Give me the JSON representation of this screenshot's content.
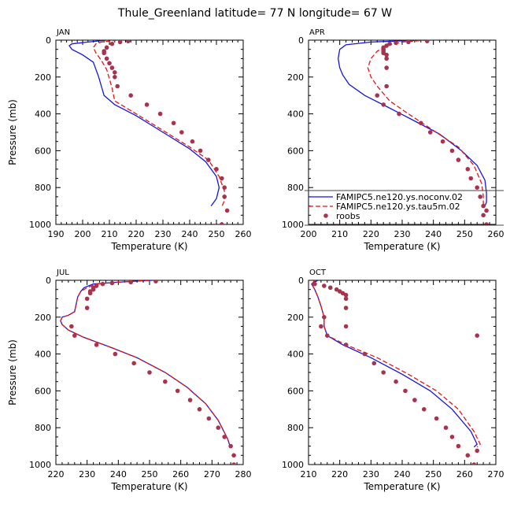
{
  "title": "Thule_Greenland  latitude= 77 N longitude= 67 W",
  "colors": {
    "noconv": "#1515e0",
    "tau5m": "#e01515",
    "roobs": "#a8334f",
    "axis": "#000000"
  },
  "legend": {
    "entries": [
      "FAMIPC5.ne120.ys.noconv.02",
      "FAMIPC5.ne120.ys.tau5m.02",
      "roobs"
    ]
  },
  "chart_data": [
    {
      "type": "line",
      "panel": "JAN",
      "label": "JAN",
      "xlabel": "Temperature (K)",
      "ylabel": "Pressure (mb)",
      "xlim": [
        190,
        260
      ],
      "ylim": [
        1000,
        0
      ],
      "xticks": [
        190,
        200,
        210,
        220,
        230,
        240,
        250,
        260
      ],
      "yticks": [
        0,
        200,
        400,
        600,
        800,
        1000
      ],
      "series": [
        {
          "name": "FAMIPC5.ne120.ys.noconv.02",
          "style": "solid",
          "x": [
            209,
            202,
            196,
            195,
            196,
            200,
            204,
            205,
            206,
            207,
            208,
            212,
            220,
            230,
            240,
            246,
            250,
            251,
            250,
            248
          ],
          "y": [
            0,
            10,
            20,
            30,
            50,
            80,
            120,
            160,
            200,
            250,
            300,
            350,
            410,
            500,
            590,
            660,
            740,
            800,
            860,
            900
          ]
        },
        {
          "name": "FAMIPC5.ne120.ys.tau5m.02",
          "style": "dashed",
          "x": [
            213,
            207,
            205,
            204,
            205,
            207,
            209,
            210,
            211,
            212,
            220,
            230,
            240,
            247,
            251,
            253,
            253,
            252
          ],
          "y": [
            0,
            10,
            20,
            40,
            70,
            110,
            160,
            210,
            260,
            330,
            400,
            490,
            580,
            650,
            740,
            820,
            870,
            905
          ]
        },
        {
          "name": "roobs",
          "style": "points",
          "x": [
            217,
            214,
            211,
            209,
            208,
            208,
            209,
            210,
            211,
            212,
            212,
            213,
            218,
            224,
            229,
            234,
            237,
            241,
            244,
            247,
            250,
            252,
            253,
            253,
            254,
            252
          ],
          "y": [
            5,
            10,
            20,
            40,
            60,
            70,
            100,
            125,
            150,
            175,
            200,
            250,
            300,
            350,
            400,
            450,
            500,
            550,
            600,
            650,
            700,
            750,
            800,
            850,
            925,
            1000
          ]
        }
      ]
    },
    {
      "type": "line",
      "panel": "APR",
      "label": "APR",
      "xlabel": "Temperature (K)",
      "ylabel": "",
      "xlim": [
        200,
        260
      ],
      "ylim": [
        1000,
        0
      ],
      "xticks": [
        200,
        210,
        220,
        230,
        240,
        250,
        260
      ],
      "yticks": [
        0,
        200,
        400,
        600,
        800,
        1000
      ],
      "series": [
        {
          "name": "FAMIPC5.ne120.ys.noconv.02",
          "style": "solid",
          "x": [
            236,
            220,
            212,
            210,
            209.5,
            210,
            211,
            213,
            218,
            225,
            233,
            242,
            249,
            254,
            256.5,
            257,
            257,
            256.5
          ],
          "y": [
            0,
            10,
            25,
            50,
            100,
            150,
            190,
            240,
            300,
            360,
            430,
            510,
            600,
            680,
            760,
            830,
            880,
            900
          ]
        },
        {
          "name": "FAMIPC5.ne120.ys.tau5m.02",
          "style": "dashed",
          "x": [
            238,
            230,
            225,
            222,
            220,
            219,
            220,
            222,
            224,
            226,
            232,
            240,
            248,
            253,
            255.5,
            256,
            256
          ],
          "y": [
            0,
            10,
            30,
            60,
            100,
            150,
            200,
            250,
            290,
            330,
            400,
            490,
            580,
            680,
            780,
            850,
            900
          ]
        },
        {
          "name": "roobs",
          "style": "points",
          "x": [
            238,
            232,
            228,
            226,
            225,
            224,
            224,
            224,
            224,
            225,
            225,
            225,
            225,
            222,
            224,
            229,
            236,
            239,
            243,
            246,
            248,
            251,
            252,
            254,
            255,
            256,
            256,
            257,
            257
          ],
          "y": [
            5,
            10,
            15,
            20,
            30,
            40,
            50,
            60,
            70,
            80,
            100,
            150,
            250,
            300,
            350,
            400,
            450,
            500,
            550,
            600,
            650,
            700,
            750,
            800,
            850,
            900,
            950,
            1000,
            925
          ]
        }
      ]
    },
    {
      "type": "line",
      "panel": "JUL",
      "label": "JUL",
      "xlabel": "Temperature (K)",
      "ylabel": "Pressure (mb)",
      "xlim": [
        220,
        280
      ],
      "ylim": [
        1000,
        0
      ],
      "xticks": [
        220,
        230,
        240,
        250,
        260,
        270,
        280
      ],
      "yticks": [
        0,
        200,
        400,
        600,
        800,
        1000
      ],
      "series": [
        {
          "name": "FAMIPC5.ne120.ys.noconv.02",
          "style": "solid",
          "x": [
            251,
            240,
            232,
            229,
            228,
            227,
            226.5,
            226,
            224,
            222,
            221.5,
            222,
            224,
            229,
            237,
            246,
            255,
            262,
            268,
            272,
            275,
            276
          ],
          "y": [
            0,
            10,
            20,
            40,
            60,
            90,
            130,
            170,
            190,
            200,
            220,
            240,
            270,
            310,
            360,
            420,
            500,
            580,
            670,
            760,
            860,
            910
          ]
        },
        {
          "name": "FAMIPC5.ne120.ys.tau5m.02",
          "style": "dashed",
          "x": [
            250,
            240,
            233,
            230,
            228,
            227,
            226.5,
            226,
            224,
            222,
            221.5,
            222,
            224,
            229,
            237,
            246,
            255,
            262,
            268,
            272,
            275,
            276
          ],
          "y": [
            0,
            10,
            20,
            40,
            60,
            90,
            130,
            170,
            190,
            200,
            220,
            240,
            270,
            310,
            360,
            420,
            500,
            580,
            670,
            760,
            860,
            910
          ]
        },
        {
          "name": "roobs",
          "style": "points",
          "x": [
            252,
            244,
            238,
            235,
            233,
            232,
            232,
            231,
            231,
            230,
            230,
            225,
            226,
            233,
            239,
            245,
            250,
            255,
            259,
            263,
            266,
            269,
            272,
            274,
            276,
            277,
            277
          ],
          "y": [
            5,
            10,
            15,
            20,
            30,
            40,
            50,
            60,
            70,
            100,
            150,
            250,
            300,
            350,
            400,
            450,
            500,
            550,
            600,
            650,
            700,
            750,
            800,
            850,
            900,
            950,
            1000
          ]
        }
      ]
    },
    {
      "type": "line",
      "panel": "OCT",
      "label": "OCT",
      "xlabel": "Temperature (K)",
      "ylabel": "",
      "xlim": [
        210,
        270
      ],
      "ylim": [
        1000,
        0
      ],
      "xticks": [
        210,
        220,
        230,
        240,
        250,
        260,
        270
      ],
      "yticks": [
        0,
        200,
        400,
        600,
        800,
        1000
      ],
      "series": [
        {
          "name": "FAMIPC5.ne120.ys.noconv.02",
          "style": "solid",
          "x": [
            213,
            211,
            212,
            213,
            214,
            215,
            215,
            216,
            221,
            230,
            240,
            249,
            256,
            262,
            264,
            263
          ],
          "y": [
            0,
            20,
            50,
            90,
            140,
            200,
            250,
            300,
            350,
            420,
            510,
            600,
            700,
            820,
            890,
            905
          ]
        },
        {
          "name": "FAMIPC5.ne120.ys.tau5m.02",
          "style": "dashed",
          "x": [
            212,
            211,
            212,
            213,
            214,
            215,
            215,
            216,
            222,
            232,
            242,
            251,
            258,
            263,
            265,
            264
          ],
          "y": [
            0,
            20,
            50,
            90,
            140,
            200,
            250,
            300,
            350,
            420,
            510,
            600,
            700,
            820,
            890,
            905
          ]
        },
        {
          "name": "roobs",
          "style": "points",
          "x": [
            212,
            215,
            217,
            219,
            220,
            221,
            222,
            222,
            222,
            222,
            215,
            214,
            216,
            222,
            228,
            231,
            234,
            238,
            241,
            244,
            247,
            251,
            254,
            256,
            258,
            261,
            263,
            264,
            264
          ],
          "y": [
            20,
            30,
            40,
            50,
            60,
            70,
            80,
            100,
            150,
            250,
            200,
            250,
            300,
            350,
            400,
            450,
            500,
            550,
            600,
            650,
            700,
            750,
            800,
            850,
            900,
            950,
            1000,
            925,
            300
          ]
        }
      ]
    }
  ]
}
